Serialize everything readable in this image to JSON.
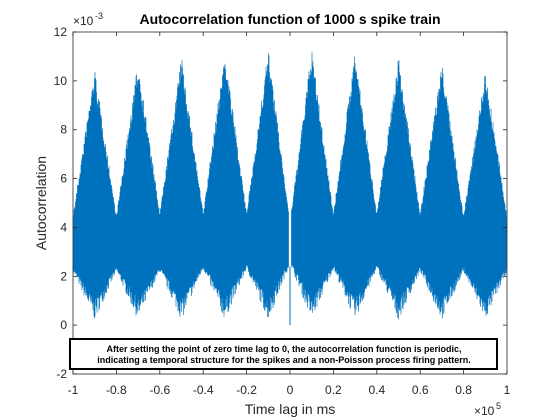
{
  "chart_data": {
    "type": "line",
    "title": "Autocorrelation function of 1000 s spike train",
    "xlabel": "Time lag in ms",
    "ylabel": "Autocorrelation",
    "xlim": [
      -100000,
      100000
    ],
    "ylim": [
      -0.002,
      0.012
    ],
    "x_exponent_base": "×10",
    "x_exponent_power": "5",
    "y_exponent_base": "×10",
    "y_exponent_power": "-3",
    "x_ticks": [
      -1,
      -0.8,
      -0.6,
      -0.4,
      -0.2,
      0,
      0.2,
      0.4,
      0.6,
      0.8,
      1
    ],
    "x_tick_labels": [
      "-1",
      "-0.8",
      "-0.6",
      "-0.4",
      "-0.2",
      "0",
      "0.2",
      "0.4",
      "0.6",
      "0.8",
      "1"
    ],
    "y_ticks": [
      -2,
      0,
      2,
      4,
      6,
      8,
      10,
      12
    ],
    "y_tick_labels": [
      "-2",
      "0",
      "2",
      "4",
      "6",
      "8",
      "10",
      "12"
    ],
    "grid": false,
    "series_color": "#0072BD",
    "series": [
      {
        "period_ms": 20000,
        "peak_lags_ms": [
          -90000,
          -70000,
          -50000,
          -30000,
          -10000,
          10000,
          30000,
          50000,
          70000,
          90000
        ],
        "upper_envelope": {
          "x": [
            -100000,
            -90000,
            -80000,
            -70000,
            -60000,
            -50000,
            -40000,
            -30000,
            -20000,
            -10000,
            -500,
            500,
            10000,
            20000,
            30000,
            40000,
            50000,
            60000,
            70000,
            80000,
            90000,
            100000
          ],
          "y": [
            0.0045,
            0.0105,
            0.0045,
            0.0108,
            0.0046,
            0.011,
            0.0046,
            0.0112,
            0.0046,
            0.0113,
            0.0046,
            0.0046,
            0.0113,
            0.0046,
            0.0112,
            0.0046,
            0.011,
            0.0046,
            0.0108,
            0.0045,
            0.0105,
            0.0045
          ]
        },
        "lower_envelope": {
          "x": [
            -100000,
            -90000,
            -80000,
            -70000,
            -60000,
            -50000,
            -40000,
            -30000,
            -20000,
            -10000,
            -500,
            500,
            10000,
            20000,
            30000,
            40000,
            50000,
            60000,
            70000,
            80000,
            90000,
            100000
          ],
          "y": [
            0.0022,
            0.0002,
            0.0022,
            0.0002,
            0.0022,
            0.0002,
            0.0023,
            0.0002,
            0.0023,
            0.0002,
            0.0024,
            0.0024,
            0.0002,
            0.0023,
            0.0002,
            0.0023,
            0.0002,
            0.0022,
            0.0002,
            0.0022,
            0.0002,
            0.0022
          ]
        },
        "zero_lag_value": 0.0
      }
    ],
    "annotation": {
      "line1": "After setting the point of zero time lag to 0, the autocorrelation function is periodic,",
      "line2": "indicating a temporal structure for the spikes and a non-Poisson process firing pattern."
    }
  }
}
